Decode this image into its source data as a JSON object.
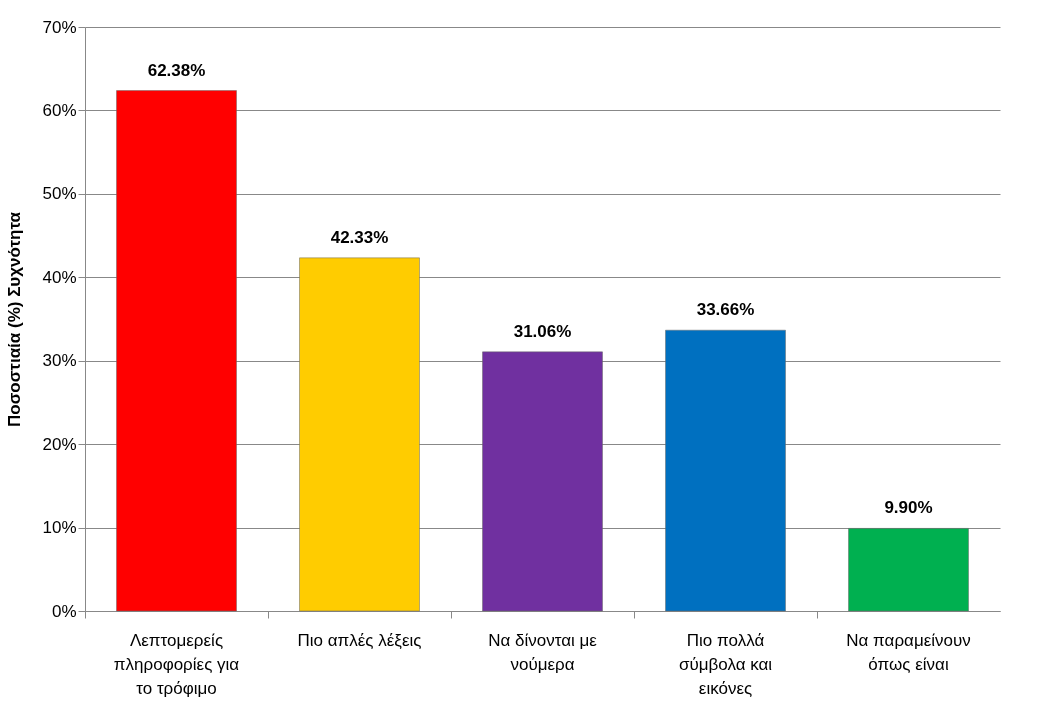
{
  "chart_data": {
    "type": "bar",
    "ylabel": "Ποσοστιαία (%) Συχνότητα",
    "categories": [
      "Λεπτομερείς πληροφορίες για το τρόφιμο",
      "Πιο απλές λέξεις",
      "Να δίνονται με νούμερα",
      "Πιο πολλά σύμβολα και εικόνες",
      "Να παραμείνουν όπως είναι"
    ],
    "values": [
      62.38,
      42.33,
      31.06,
      33.66,
      9.9
    ],
    "colors": [
      "#ff0000",
      "#ffcc00",
      "#7030a0",
      "#0070c0",
      "#00b050"
    ],
    "value_labels": [
      "62.38%",
      "42.33%",
      "31.06%",
      "33.66%",
      "9.90%"
    ],
    "ylim": [
      0,
      70
    ],
    "yticks": [
      {
        "value": 0,
        "label": "0%"
      },
      {
        "value": 10,
        "label": "10%"
      },
      {
        "value": 20,
        "label": "20%"
      },
      {
        "value": 30,
        "label": "30%"
      },
      {
        "value": 40,
        "label": "40%"
      },
      {
        "value": 50,
        "label": "50%"
      },
      {
        "value": 60,
        "label": "60%"
      },
      {
        "value": 70,
        "label": "70%"
      }
    ],
    "grid": "y"
  }
}
